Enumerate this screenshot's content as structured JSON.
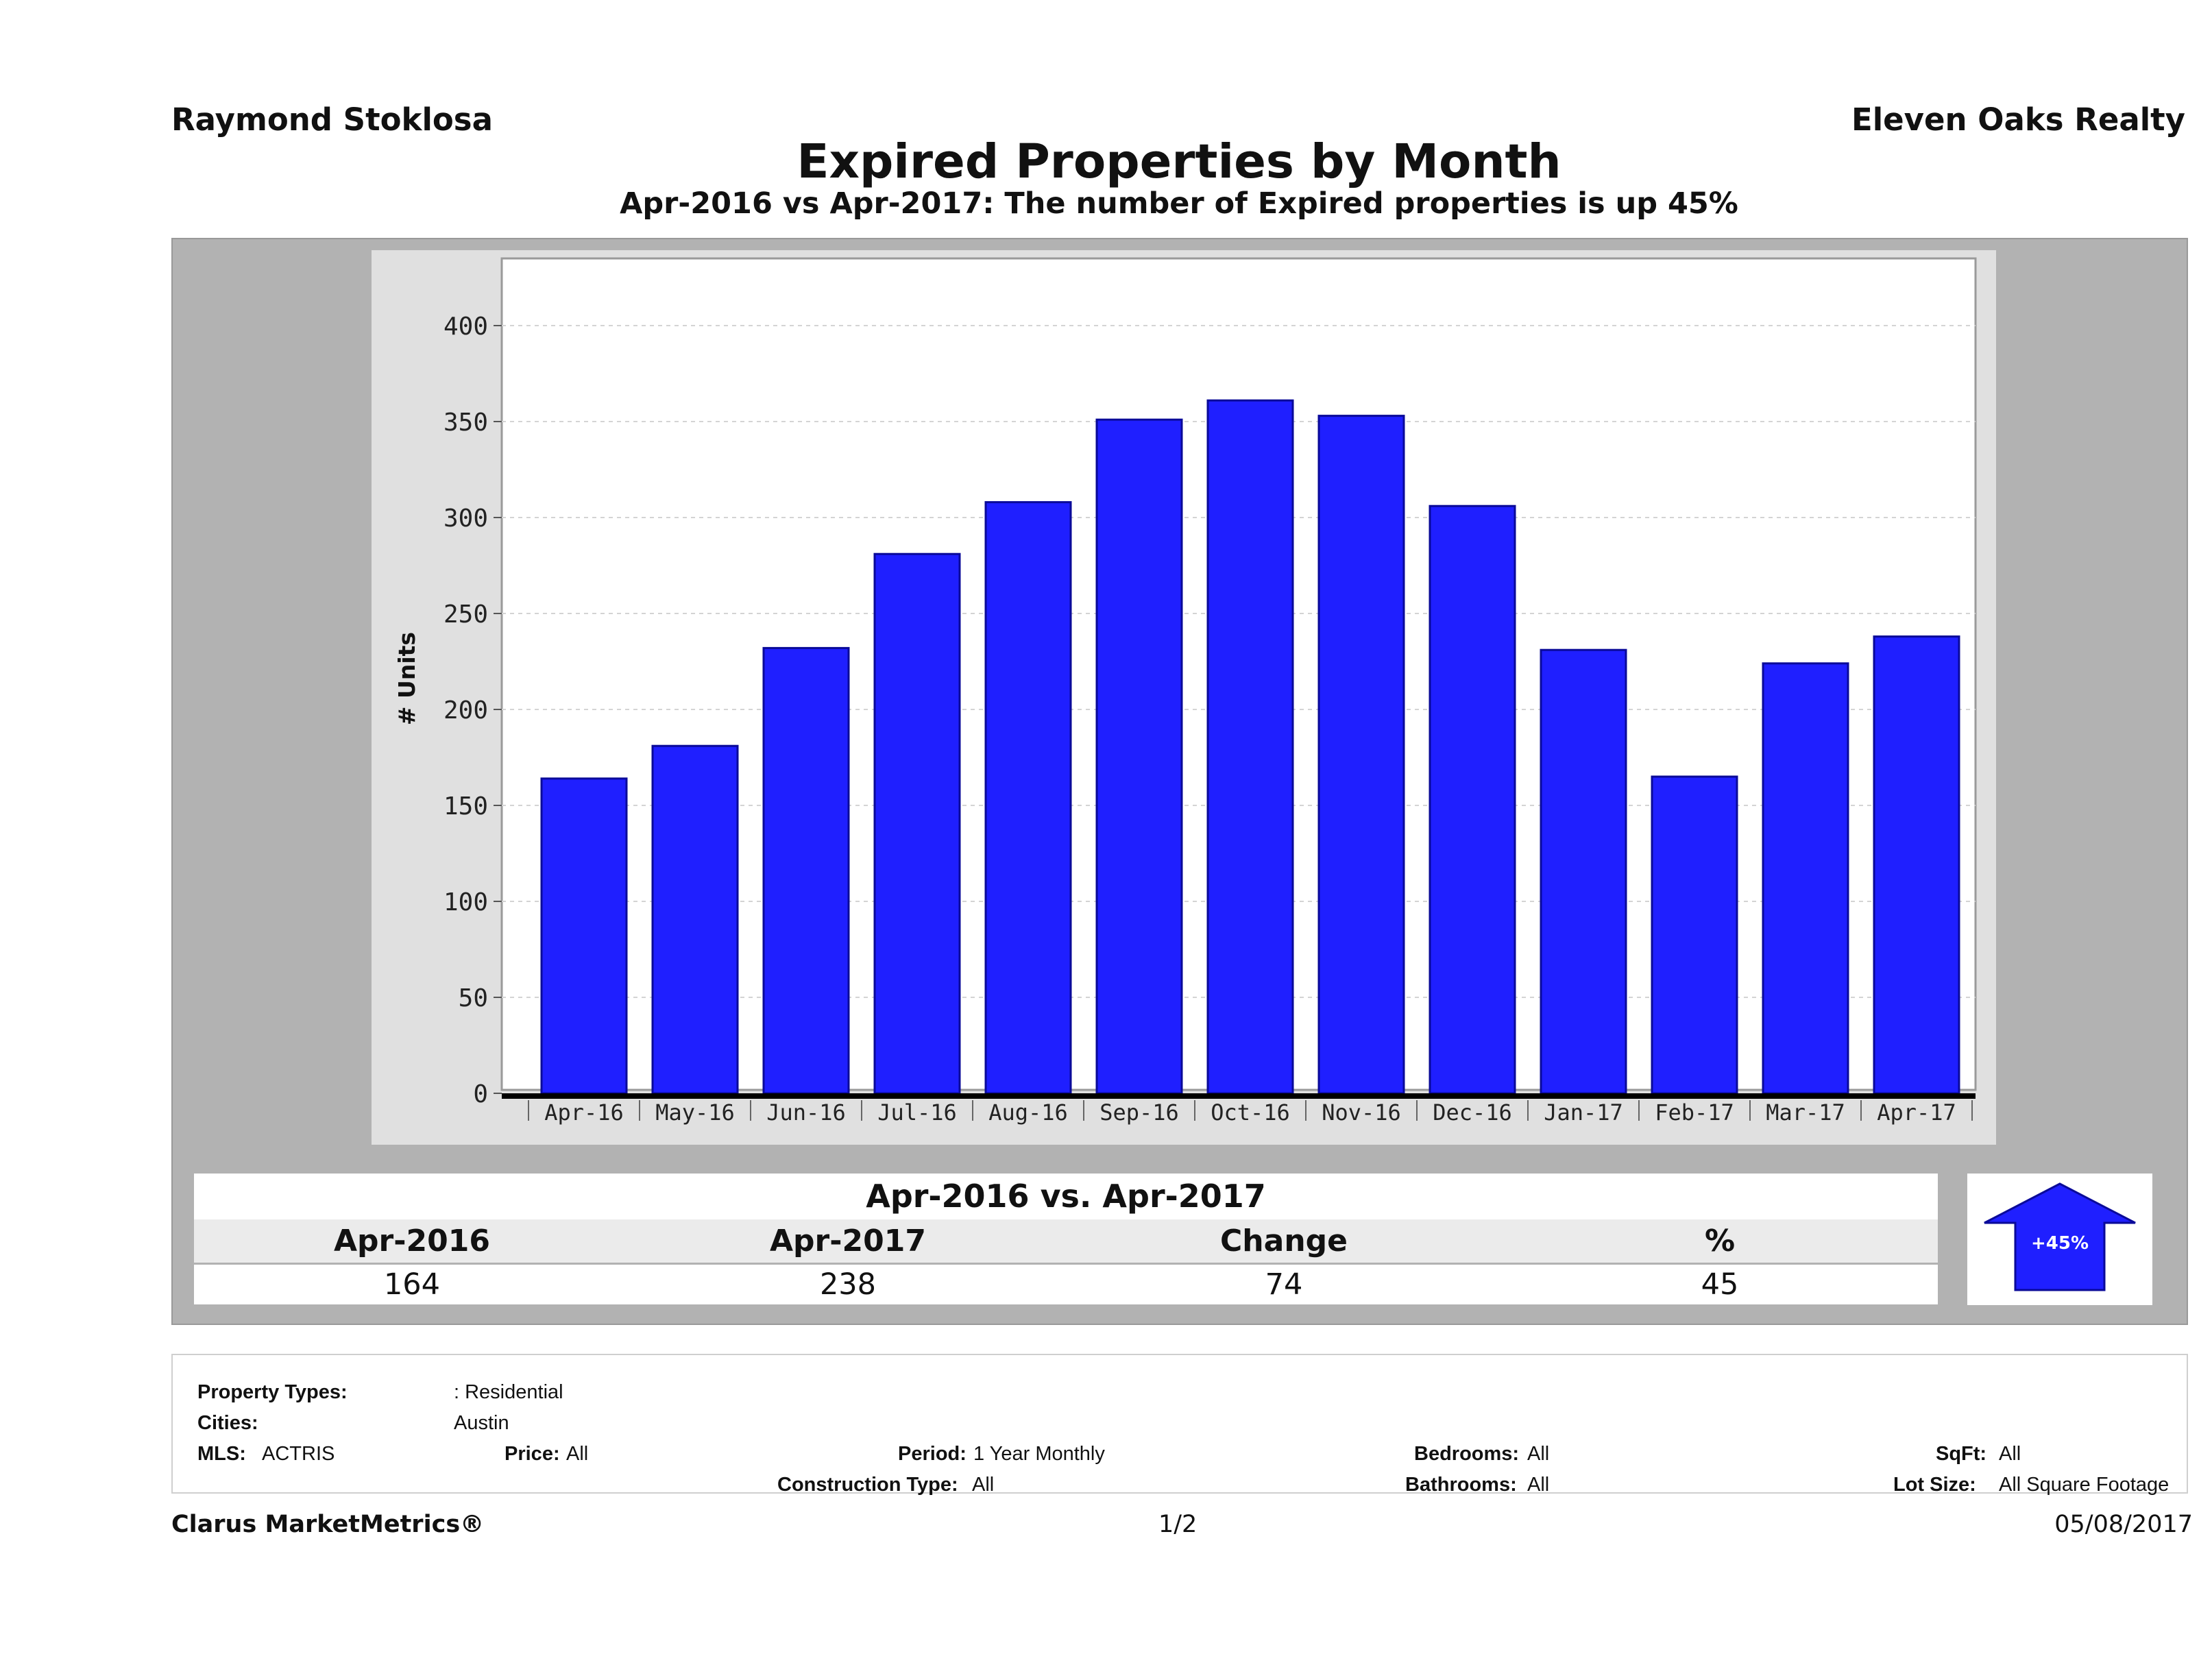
{
  "header": {
    "agent": "Raymond Stoklosa",
    "company": "Eleven Oaks Realty",
    "title": "Expired Properties by Month",
    "subtitle": "Apr-2016 vs Apr-2017: The number of Expired  properties is up 45%"
  },
  "chart_data": {
    "type": "bar",
    "title": "Expired Properties by Month",
    "xlabel": "",
    "ylabel": "# Units",
    "ylim": [
      0,
      430
    ],
    "yticks": [
      "0",
      "50",
      "100",
      "150",
      "200",
      "250",
      "300",
      "350",
      "400"
    ],
    "grid": true,
    "categories": [
      "Apr-16",
      "May-16",
      "Jun-16",
      "Jul-16",
      "Aug-16",
      "Sep-16",
      "Oct-16",
      "Nov-16",
      "Dec-16",
      "Jan-17",
      "Feb-17",
      "Mar-17",
      "Apr-17"
    ],
    "values": [
      164,
      181,
      232,
      281,
      308,
      351,
      361,
      353,
      306,
      231,
      165,
      224,
      238
    ],
    "bar_color": "#1f1fff"
  },
  "summary": {
    "heading": "Apr-2016 vs. Apr-2017",
    "labels": [
      "Apr-2016",
      "Apr-2017",
      "Change",
      "%"
    ],
    "values": [
      "164",
      "238",
      "74",
      "45"
    ],
    "badge": "+45%",
    "badge_color": "#1f1fff",
    "badge_icon": "up-arrow-icon"
  },
  "criteria": {
    "property_types_label": "Property Types:",
    "property_types_value": ": Residential",
    "cities_label": "Cities:",
    "cities_value": "Austin",
    "mls_label": "MLS:",
    "mls_value": "ACTRIS",
    "price_label": "Price:",
    "price_value": "All",
    "period_label": "Period:",
    "period_value": "1 Year Monthly",
    "construction_label": "Construction Type:",
    "construction_value": "All",
    "bedrooms_label": "Bedrooms:",
    "bedrooms_value": "All",
    "bathrooms_label": "Bathrooms:",
    "bathrooms_value": "All",
    "sqft_label": "SqFt:",
    "sqft_value": "All",
    "lotsize_label": "Lot Size:",
    "lotsize_value": "All Square Footage"
  },
  "footer": {
    "brand": "Clarus MarketMetrics®",
    "page": "1/2",
    "date": "05/08/2017"
  }
}
